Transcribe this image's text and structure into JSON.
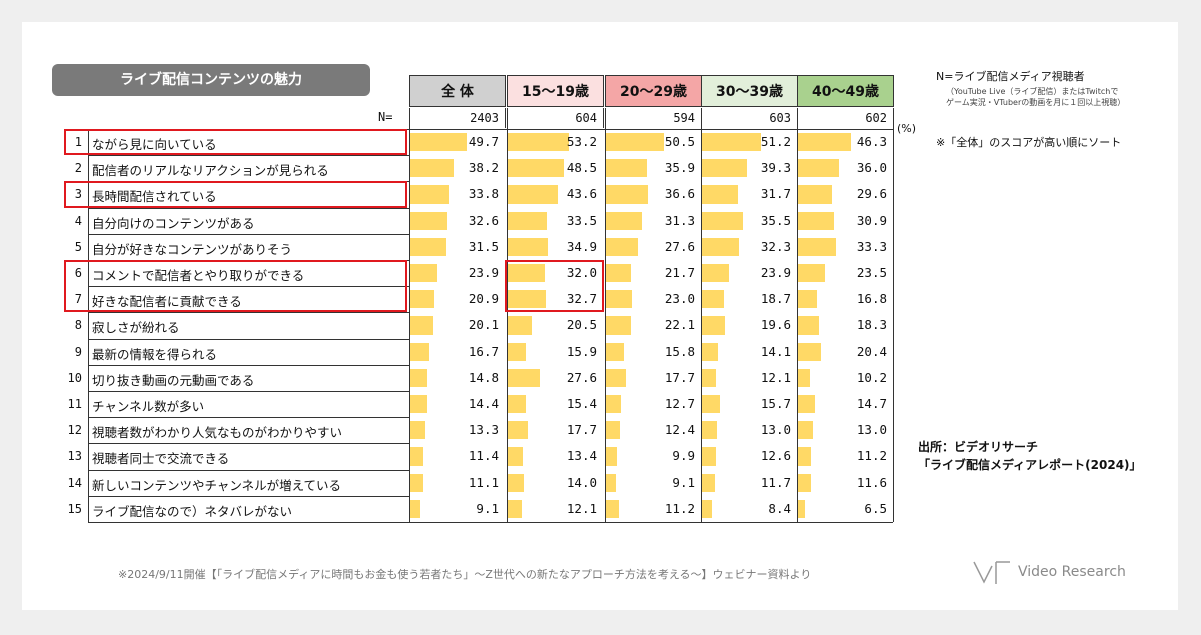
{
  "title": "ライブ配信コンテンツの魅力",
  "n_prefix": "N=",
  "unit": "(%)",
  "note": {
    "title": "N=ライブ配信メディア視聴者",
    "sub1": "（YouTube Live（ライブ配信）またはTwitchで",
    "sub2": "ゲーム実況・VTuberの動画を月に１回以上視聴）",
    "sort": "※「全体」のスコアが高い順にソート"
  },
  "source": {
    "line1": "出所：ビデオリサーチ",
    "line2": "「ライブ配信メディアレポート(2024)」"
  },
  "footnote": "※2024/9/11開催【「ライブ配信メディアに時間もお金も使う若者たち」～Z世代への新たなアプローチ方法を考える～】ウェビナー資料より",
  "logo_text": "Video Research",
  "colors": {
    "bar": "#ffd966",
    "highlight": "#e0191f",
    "title_bg": "#7a7a7a"
  },
  "chart_data": {
    "type": "table",
    "columns": [
      {
        "name": "全 体",
        "n": "2403",
        "color": "#d0d0d0"
      },
      {
        "name": "15～19歳",
        "n": "604",
        "color": "#fbe0e0"
      },
      {
        "name": "20～29歳",
        "n": "594",
        "color": "#f4a6a6"
      },
      {
        "name": "30～39歳",
        "n": "603",
        "color": "#e2efda"
      },
      {
        "name": "40～49歳",
        "n": "602",
        "color": "#a9d18e"
      }
    ],
    "rows": [
      {
        "rank": "1",
        "label": "ながら見に向いている",
        "values": [
          49.7,
          53.2,
          50.5,
          51.2,
          46.3
        ]
      },
      {
        "rank": "2",
        "label": "配信者のリアルなリアクションが見られる",
        "values": [
          38.2,
          48.5,
          35.9,
          39.3,
          36.0
        ]
      },
      {
        "rank": "3",
        "label": "長時間配信されている",
        "values": [
          33.8,
          43.6,
          36.6,
          31.7,
          29.6
        ]
      },
      {
        "rank": "4",
        "label": "自分向けのコンテンツがある",
        "values": [
          32.6,
          33.5,
          31.3,
          35.5,
          30.9
        ]
      },
      {
        "rank": "5",
        "label": "自分が好きなコンテンツがありそう",
        "values": [
          31.5,
          34.9,
          27.6,
          32.3,
          33.3
        ]
      },
      {
        "rank": "6",
        "label": "コメントで配信者とやり取りができる",
        "values": [
          23.9,
          32.0,
          21.7,
          23.9,
          23.5
        ]
      },
      {
        "rank": "7",
        "label": "好きな配信者に貢献できる",
        "values": [
          20.9,
          32.7,
          23.0,
          18.7,
          16.8
        ]
      },
      {
        "rank": "8",
        "label": "寂しさが紛れる",
        "values": [
          20.1,
          20.5,
          22.1,
          19.6,
          18.3
        ]
      },
      {
        "rank": "9",
        "label": "最新の情報を得られる",
        "values": [
          16.7,
          15.9,
          15.8,
          14.1,
          20.4
        ]
      },
      {
        "rank": "10",
        "label": "切り抜き動画の元動画である",
        "values": [
          14.8,
          27.6,
          17.7,
          12.1,
          10.2
        ]
      },
      {
        "rank": "11",
        "label": "チャンネル数が多い",
        "values": [
          14.4,
          15.4,
          12.7,
          15.7,
          14.7
        ]
      },
      {
        "rank": "12",
        "label": "視聴者数がわかり人気なものがわかりやすい",
        "values": [
          13.3,
          17.7,
          12.4,
          13.0,
          13.0
        ]
      },
      {
        "rank": "13",
        "label": "視聴者同士で交流できる",
        "values": [
          11.4,
          13.4,
          9.9,
          12.6,
          11.2
        ]
      },
      {
        "rank": "14",
        "label": "新しいコンテンツやチャンネルが増えている",
        "values": [
          11.1,
          14.0,
          9.1,
          11.7,
          11.6
        ]
      },
      {
        "rank": "15",
        "label": "ライブ配信なので）ネタバレがない",
        "values": [
          9.1,
          12.1,
          11.2,
          8.4,
          6.5
        ]
      }
    ],
    "highlighted_rows": [
      "1",
      "3",
      "6",
      "7"
    ],
    "highlighted_cells": [
      {
        "rank": "6",
        "column": "15～19歳"
      },
      {
        "rank": "7",
        "column": "15～19歳"
      }
    ]
  }
}
